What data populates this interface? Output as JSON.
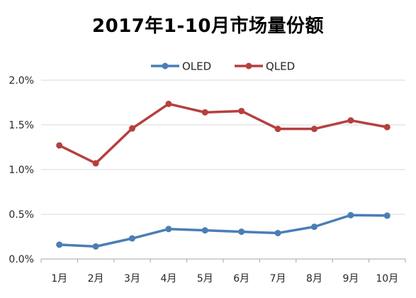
{
  "chart_data": {
    "type": "line",
    "title": "2017年1-10月市场量份额",
    "categories": [
      "1月",
      "2月",
      "3月",
      "4月",
      "5月",
      "6月",
      "7月",
      "8月",
      "9月",
      "10月"
    ],
    "series": [
      {
        "name": "OLED",
        "color": "#4a7eb5",
        "values": [
          0.16,
          0.14,
          0.23,
          0.335,
          0.32,
          0.305,
          0.29,
          0.36,
          0.49,
          0.485
        ]
      },
      {
        "name": "QLED",
        "color": "#b5403e",
        "values": [
          1.27,
          1.07,
          1.46,
          1.735,
          1.64,
          1.655,
          1.455,
          1.455,
          1.55,
          1.475
        ]
      }
    ],
    "yticks": [
      "0.0%",
      "0.5%",
      "1.0%",
      "1.5%",
      "2.0%"
    ],
    "ylim": [
      0,
      2.0
    ],
    "y_unit": "%",
    "grid": true,
    "legend_position": "top-center",
    "xlabel": "",
    "ylabel": ""
  }
}
